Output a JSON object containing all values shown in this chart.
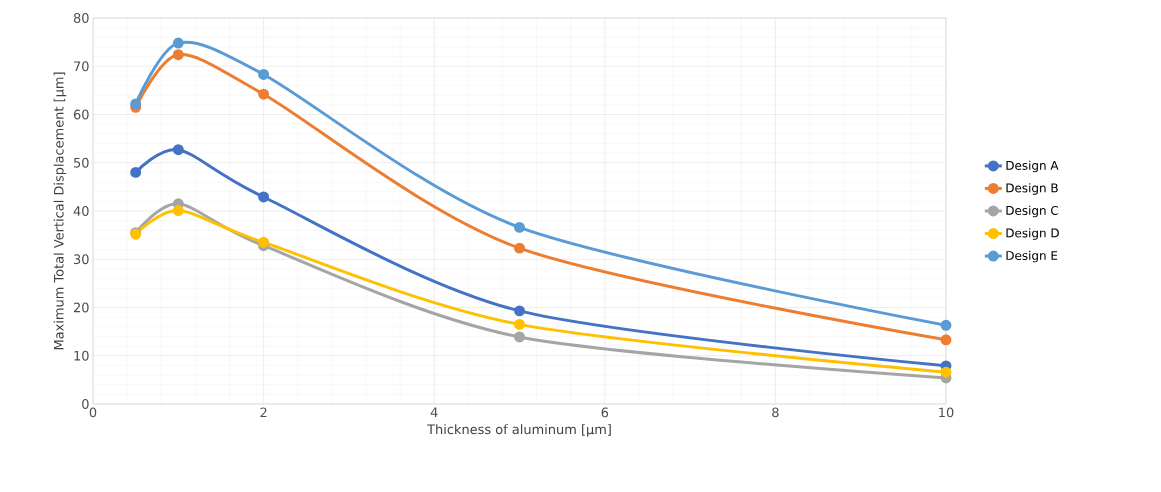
{
  "chart_data": {
    "type": "line",
    "xlabel": "Thickness of aluminum [µm]",
    "ylabel": "Maximum Total Vertical Displacement [µm]",
    "x": [
      0.5,
      1,
      2,
      5,
      10
    ],
    "series": [
      {
        "name": "Design A",
        "color": "#4472c4",
        "values": [
          48,
          52.7,
          42.9,
          19.3,
          7.9
        ]
      },
      {
        "name": "Design B",
        "color": "#ed7d31",
        "values": [
          61.5,
          72.4,
          64.2,
          32.3,
          13.3
        ]
      },
      {
        "name": "Design C",
        "color": "#a5a5a5",
        "values": [
          35.5,
          41.5,
          32.8,
          13.9,
          5.4
        ]
      },
      {
        "name": "Design D",
        "color": "#ffc000",
        "values": [
          35.2,
          40.1,
          33.5,
          16.5,
          6.6
        ]
      },
      {
        "name": "Design E",
        "color": "#5b9bd5",
        "values": [
          62.2,
          74.8,
          68.3,
          36.6,
          16.3
        ]
      }
    ],
    "xlim": [
      0,
      10
    ],
    "ylim": [
      0,
      80
    ],
    "xticks": [
      0,
      2,
      4,
      6,
      8,
      10
    ],
    "yticks": [
      0,
      10,
      20,
      30,
      40,
      50,
      60,
      70,
      80
    ],
    "grid": true,
    "legend": "right",
    "marker": "circle",
    "line_style": "solid"
  }
}
